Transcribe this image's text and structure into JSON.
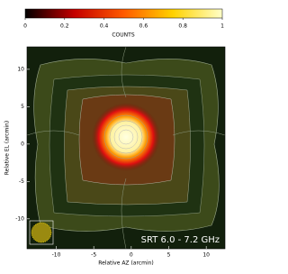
{
  "chart_data": {
    "type": "image",
    "colorbar": {
      "label": "COUNTS",
      "lim": [
        0,
        1
      ],
      "ticks": [
        0,
        0.2,
        0.4,
        0.6,
        0.8,
        1
      ],
      "colors": [
        "#000000",
        "#c40000",
        "#ff5a00",
        "#ffd200",
        "#ffffc8"
      ]
    },
    "xlabel": "Relative AZ (arcmin)",
    "ylabel": "Relative EL (arcmin)",
    "xlim": [
      -13.9,
      12.5
    ],
    "ylim": [
      -14,
      13
    ],
    "xticks": [
      -10,
      -5,
      0,
      5,
      10
    ],
    "yticks": [
      -10,
      -5,
      0,
      5,
      10
    ],
    "annotation": "SRT 6.0 - 7.2 GHz"
  }
}
